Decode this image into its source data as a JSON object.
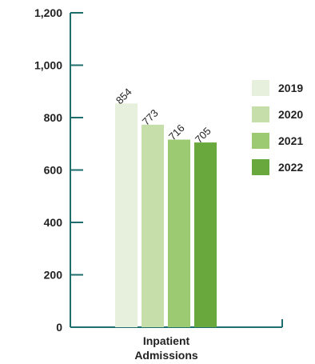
{
  "chart_data": {
    "type": "bar",
    "categories": [
      "Inpatient Admissions"
    ],
    "series": [
      {
        "name": "2019",
        "values": [
          854
        ],
        "color": "#e6f0dc"
      },
      {
        "name": "2020",
        "values": [
          773
        ],
        "color": "#c6dfaa"
      },
      {
        "name": "2021",
        "values": [
          716
        ],
        "color": "#9cca72"
      },
      {
        "name": "2022",
        "values": [
          705
        ],
        "color": "#68a83c"
      }
    ],
    "ylim": [
      0,
      1200
    ],
    "yticks": [
      0,
      200,
      400,
      600,
      800,
      1000,
      1200
    ],
    "ytick_labels": [
      "0",
      "200",
      "400",
      "600",
      "800",
      "1,000",
      "1,200"
    ],
    "category_label_lines": [
      "Inpatient",
      "Admissions"
    ],
    "data_labels": [
      "854",
      "773",
      "716",
      "705"
    ],
    "legend": {
      "position": "right",
      "entries": [
        "2019",
        "2020",
        "2021",
        "2022"
      ]
    },
    "axis_color": "#1f6e6e",
    "grid": false
  }
}
